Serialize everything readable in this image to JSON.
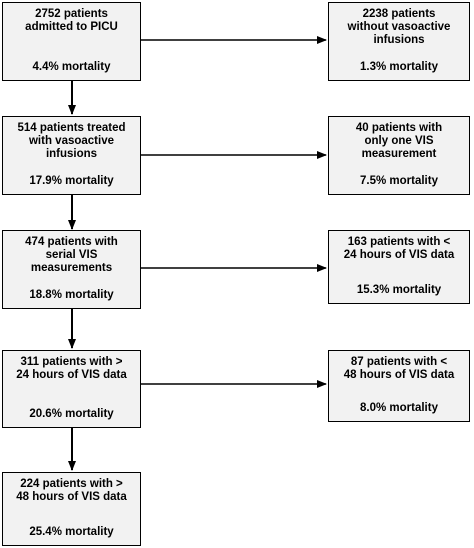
{
  "main_flow": [
    {
      "line1": "2752 patients",
      "line2": "admitted to PICU",
      "line3": "",
      "mortality": "4.4% mortality"
    },
    {
      "line1": "514 patients treated",
      "line2": "with vasoactive",
      "line3": "infusions",
      "mortality": "17.9% mortality"
    },
    {
      "line1": "474 patients with",
      "line2": "serial VIS",
      "line3": "measurements",
      "mortality": "18.8% mortality"
    },
    {
      "line1": "311 patients with >",
      "line2": "24 hours of VIS data",
      "line3": "",
      "mortality": "20.6% mortality"
    },
    {
      "line1": "224 patients with >",
      "line2": "48 hours of VIS data",
      "line3": "",
      "mortality": "25.4% mortality"
    }
  ],
  "exclusions": [
    {
      "line1": "2238 patients",
      "line2": "without vasoactive",
      "line3": "infusions",
      "mortality": "1.3% mortality"
    },
    {
      "line1": "40 patients with",
      "line2": "only one VIS",
      "line3": "measurement",
      "mortality": "7.5% mortality"
    },
    {
      "line1": "163 patients with <",
      "line2": "24 hours of VIS data",
      "line3": "",
      "mortality": "15.3% mortality"
    },
    {
      "line1": "87 patients with <",
      "line2": "48 hours of VIS data",
      "line3": "",
      "mortality": "8.0% mortality"
    }
  ]
}
